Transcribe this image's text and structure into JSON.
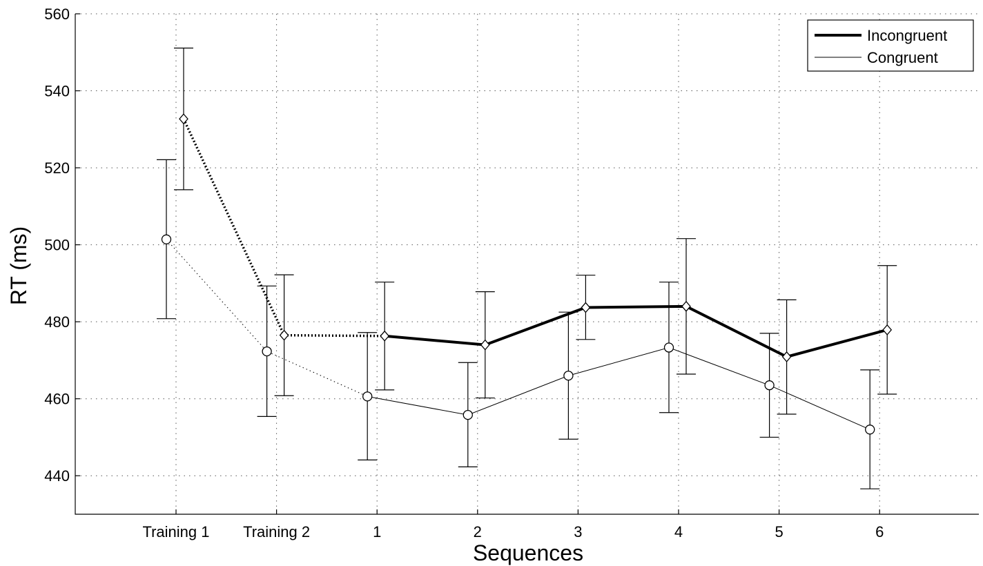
{
  "chart_data": {
    "type": "line",
    "title": "",
    "xlabel": "Sequences",
    "ylabel": "RT (ms)",
    "ylim": [
      430,
      560
    ],
    "yticks": [
      440,
      460,
      480,
      500,
      520,
      540,
      560
    ],
    "categories": [
      "Training 1",
      "Training 2",
      "1",
      "2",
      "3",
      "4",
      "5",
      "6"
    ],
    "grid": true,
    "legend_position": "top-right",
    "series": [
      {
        "name": "Incongruent",
        "marker": "diamond",
        "line": "thick",
        "values": [
          532.7,
          476.5,
          476.3,
          474.0,
          483.7,
          484.0,
          470.9,
          477.9
        ],
        "err_low": [
          514.3,
          460.8,
          462.3,
          460.2,
          475.4,
          466.4,
          456.0,
          461.2
        ],
        "err_high": [
          551.1,
          492.2,
          490.3,
          487.8,
          492.1,
          501.6,
          485.7,
          494.6
        ]
      },
      {
        "name": "Congruent",
        "marker": "circle",
        "line": "thin",
        "values": [
          501.4,
          472.3,
          460.6,
          455.8,
          466.0,
          473.3,
          463.5,
          452.0
        ],
        "err_low": [
          480.8,
          455.4,
          444.1,
          442.3,
          449.5,
          456.4,
          450.0,
          436.6
        ],
        "err_high": [
          522.1,
          489.3,
          477.2,
          469.4,
          482.5,
          490.3,
          477.0,
          467.5
        ]
      }
    ]
  }
}
